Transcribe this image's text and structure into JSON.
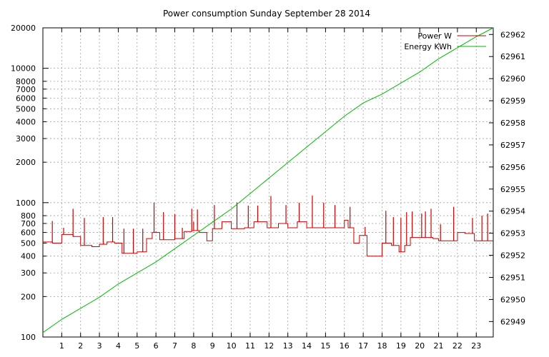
{
  "chart_data": {
    "type": "line",
    "title": "Power consumption Sunday September 28 2014",
    "legend": {
      "placement": "top-right",
      "entries": [
        {
          "label": "Power W",
          "color": "#cc0000"
        },
        {
          "label": "Energy KWh",
          "color": "#00bb00"
        }
      ]
    },
    "x_axis": {
      "range": [
        0,
        23.9
      ],
      "ticks": [
        1,
        2,
        3,
        4,
        5,
        6,
        7,
        8,
        9,
        10,
        11,
        12,
        13,
        14,
        15,
        16,
        17,
        18,
        19,
        20,
        21,
        22,
        23
      ],
      "tick_labels": [
        "1",
        "2",
        "3",
        "4",
        "5",
        "6",
        "7",
        "8",
        "9",
        "10",
        "11",
        "12",
        "13",
        "14",
        "15",
        "16",
        "17",
        "18",
        "19",
        "20",
        "21",
        "22",
        "23"
      ],
      "grid": true
    },
    "y_axis_left": {
      "scale": "log",
      "range": [
        100,
        20000
      ],
      "ticks": [
        100,
        200,
        300,
        400,
        500,
        600,
        700,
        800,
        1000,
        2000,
        3000,
        4000,
        5000,
        6000,
        7000,
        8000,
        10000,
        20000
      ],
      "tick_labels": [
        "100",
        "200",
        "300",
        "400",
        "500",
        "600",
        "700",
        "800",
        "1000",
        "2000",
        "3000",
        "4000",
        "5000",
        "6000",
        "7000",
        "8000",
        "10000",
        "20000"
      ],
      "grid": true
    },
    "y_axis_right": {
      "scale": "linear",
      "range": [
        62948.3,
        62962.3
      ],
      "ticks": [
        62949,
        62950,
        62951,
        62952,
        62953,
        62954,
        62955,
        62956,
        62957,
        62958,
        62959,
        62960,
        62961,
        62962
      ],
      "tick_labels": [
        "62949",
        "62950",
        "62951",
        "62952",
        "62953",
        "62954",
        "62955",
        "62956",
        "62957",
        "62958",
        "62959",
        "62960",
        "62961",
        "62962"
      ]
    },
    "series": [
      {
        "name": "Power W",
        "axis": "left",
        "color": "#cc0000",
        "step": true,
        "x": [
          0,
          0.5,
          1.0,
          1.6,
          2.0,
          2.6,
          3.0,
          3.4,
          3.8,
          4.2,
          4.6,
          5.0,
          5.5,
          5.8,
          6.2,
          7.0,
          7.5,
          7.9,
          8.3,
          8.7,
          9.0,
          9.5,
          10.0,
          10.7,
          11.2,
          11.9,
          12.5,
          13.0,
          13.5,
          14.0,
          14.5,
          15.0,
          15.5,
          16.0,
          16.2,
          16.5,
          16.8,
          17.2,
          17.5,
          18.0,
          18.5,
          18.9,
          19.2,
          19.5,
          19.9,
          20.3,
          20.7,
          21.0,
          21.4,
          22.0,
          22.4,
          22.9,
          23.3,
          23.9
        ],
        "values": [
          510,
          500,
          580,
          560,
          480,
          470,
          490,
          510,
          500,
          420,
          420,
          430,
          540,
          600,
          530,
          540,
          610,
          620,
          600,
          520,
          640,
          720,
          640,
          650,
          720,
          650,
          700,
          650,
          720,
          650,
          650,
          650,
          650,
          740,
          650,
          500,
          570,
          400,
          400,
          500,
          480,
          430,
          480,
          550,
          550,
          550,
          540,
          520,
          520,
          600,
          590,
          520,
          520,
          520
        ],
        "spikes": [
          [
            0.5,
            730
          ],
          [
            1.1,
            650
          ],
          [
            1.6,
            900
          ],
          [
            2.2,
            770
          ],
          [
            3.2,
            780
          ],
          [
            3.7,
            780
          ],
          [
            4.3,
            640
          ],
          [
            4.8,
            640
          ],
          [
            5.3,
            640
          ],
          [
            5.9,
            1000
          ],
          [
            6.0,
            610
          ],
          [
            6.4,
            850
          ],
          [
            7.0,
            820
          ],
          [
            7.4,
            650
          ],
          [
            7.9,
            900
          ],
          [
            8.0,
            720
          ],
          [
            8.2,
            890
          ],
          [
            9.1,
            960
          ],
          [
            10.3,
            1000
          ],
          [
            10.9,
            950
          ],
          [
            11.4,
            950
          ],
          [
            12.1,
            1120
          ],
          [
            12.9,
            960
          ],
          [
            13.6,
            1000
          ],
          [
            14.3,
            1130
          ],
          [
            14.9,
            1000
          ],
          [
            15.5,
            960
          ],
          [
            16.3,
            930
          ],
          [
            17.1,
            660
          ],
          [
            18.2,
            870
          ],
          [
            18.6,
            780
          ],
          [
            19.0,
            770
          ],
          [
            19.3,
            850
          ],
          [
            19.6,
            860
          ],
          [
            20.1,
            830
          ],
          [
            20.3,
            860
          ],
          [
            20.6,
            900
          ],
          [
            21.1,
            690
          ],
          [
            21.8,
            930
          ],
          [
            22.8,
            770
          ],
          [
            23.3,
            800
          ],
          [
            23.6,
            830
          ]
        ]
      },
      {
        "name": "Energy KWh",
        "axis": "right",
        "color": "#00bb00",
        "x": [
          0,
          1,
          2,
          3,
          4,
          5,
          6,
          7,
          8,
          9,
          10,
          11,
          12,
          13,
          14,
          15,
          16,
          17,
          18,
          19,
          20,
          21,
          22,
          23,
          23.9
        ],
        "values": [
          62948.5,
          62949.1,
          62949.6,
          62950.1,
          62950.7,
          62951.2,
          62951.7,
          62952.3,
          62952.9,
          62953.5,
          62954.1,
          62954.8,
          62955.5,
          62956.2,
          62956.9,
          62957.6,
          62958.3,
          62958.9,
          62959.3,
          62959.8,
          62960.3,
          62960.9,
          62961.4,
          62961.9,
          62962.3
        ]
      }
    ]
  }
}
